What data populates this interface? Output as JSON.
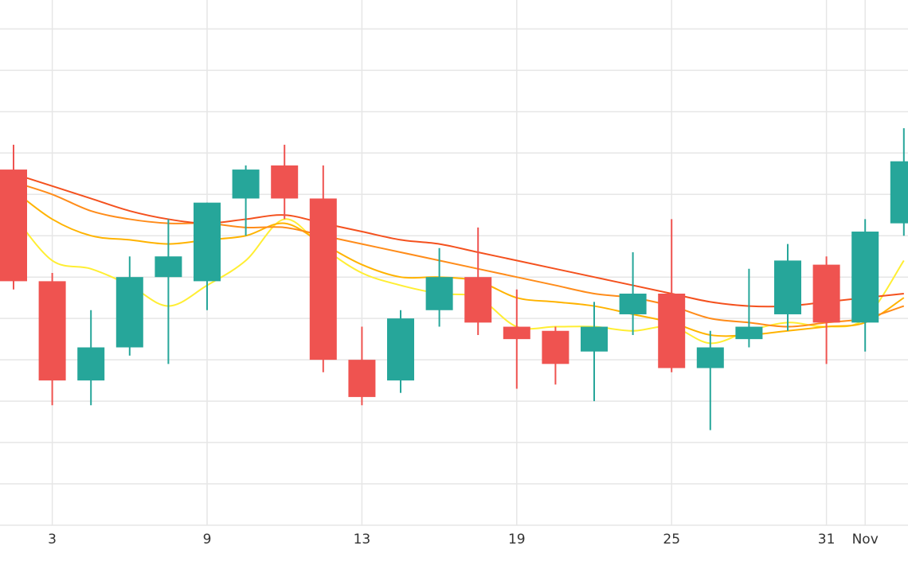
{
  "chart_data": {
    "type": "candlestick",
    "title": "",
    "xlabel": "",
    "ylabel": "",
    "grid": true,
    "legend": "none",
    "x_tick_labels": [
      "3",
      "9",
      "13",
      "19",
      "25",
      "31",
      "Nov"
    ],
    "ylim": [
      0,
      12.7
    ],
    "colors": {
      "up": "#26a69a",
      "down": "#ef5350",
      "grid": "#e6e6e6",
      "ma_series": [
        "#ffee33",
        "#ffb300",
        "#ff8c1a",
        "#f4511e"
      ]
    },
    "candles": [
      {
        "open": 8.6,
        "high": 9.2,
        "low": 5.7,
        "close": 5.9
      },
      {
        "open": 5.9,
        "high": 6.1,
        "low": 2.9,
        "close": 3.5
      },
      {
        "open": 3.5,
        "high": 5.2,
        "low": 2.9,
        "close": 4.3
      },
      {
        "open": 4.3,
        "high": 6.5,
        "low": 4.1,
        "close": 6.0
      },
      {
        "open": 6.0,
        "high": 7.4,
        "low": 3.9,
        "close": 6.5
      },
      {
        "open": 5.9,
        "high": 7.8,
        "low": 5.2,
        "close": 7.8
      },
      {
        "open": 7.9,
        "high": 8.7,
        "low": 7.0,
        "close": 8.6
      },
      {
        "open": 8.7,
        "high": 9.2,
        "low": 7.4,
        "close": 7.9
      },
      {
        "open": 7.9,
        "high": 8.7,
        "low": 3.7,
        "close": 4.0
      },
      {
        "open": 4.0,
        "high": 4.8,
        "low": 2.9,
        "close": 3.1
      },
      {
        "open": 3.5,
        "high": 5.2,
        "low": 3.2,
        "close": 5.0
      },
      {
        "open": 5.2,
        "high": 6.7,
        "low": 4.8,
        "close": 6.0
      },
      {
        "open": 6.0,
        "high": 7.2,
        "low": 4.6,
        "close": 4.9
      },
      {
        "open": 4.8,
        "high": 5.7,
        "low": 3.3,
        "close": 4.5
      },
      {
        "open": 4.7,
        "high": 4.8,
        "low": 3.4,
        "close": 3.9
      },
      {
        "open": 4.2,
        "high": 5.4,
        "low": 3.0,
        "close": 4.8
      },
      {
        "open": 5.1,
        "high": 6.6,
        "low": 4.6,
        "close": 5.6
      },
      {
        "open": 5.6,
        "high": 7.4,
        "low": 3.7,
        "close": 3.8
      },
      {
        "open": 3.8,
        "high": 4.7,
        "low": 2.3,
        "close": 4.3
      },
      {
        "open": 4.5,
        "high": 6.2,
        "low": 4.3,
        "close": 4.8
      },
      {
        "open": 5.1,
        "high": 6.8,
        "low": 4.7,
        "close": 6.4
      },
      {
        "open": 6.3,
        "high": 6.5,
        "low": 3.9,
        "close": 4.9
      },
      {
        "open": 4.9,
        "high": 7.4,
        "low": 4.2,
        "close": 7.1
      },
      {
        "open": 7.3,
        "high": 9.6,
        "low": 7.0,
        "close": 8.8
      }
    ],
    "ma_series": [
      {
        "values": [
          7.5,
          6.4,
          6.2,
          5.8,
          5.3,
          5.8,
          6.4,
          7.4,
          6.7,
          6.1,
          5.8,
          5.6,
          5.5,
          4.8,
          4.8,
          4.8,
          4.7,
          4.8,
          4.4,
          4.7,
          4.9,
          4.8,
          5.0,
          6.4
        ]
      },
      {
        "values": [
          8.1,
          7.4,
          7.0,
          6.9,
          6.8,
          6.9,
          7.0,
          7.3,
          6.8,
          6.3,
          6.0,
          6.0,
          5.9,
          5.5,
          5.4,
          5.3,
          5.1,
          4.9,
          4.6,
          4.6,
          4.7,
          4.8,
          4.9,
          5.5
        ]
      },
      {
        "values": [
          8.3,
          8.0,
          7.6,
          7.4,
          7.3,
          7.3,
          7.2,
          7.2,
          7.0,
          6.8,
          6.6,
          6.4,
          6.2,
          6.0,
          5.8,
          5.6,
          5.5,
          5.3,
          5.0,
          4.9,
          4.8,
          4.9,
          5.0,
          5.3
        ]
      },
      {
        "values": [
          8.5,
          8.2,
          7.9,
          7.6,
          7.4,
          7.3,
          7.4,
          7.5,
          7.3,
          7.1,
          6.9,
          6.8,
          6.6,
          6.4,
          6.2,
          6.0,
          5.8,
          5.6,
          5.4,
          5.3,
          5.3,
          5.4,
          5.5,
          5.6
        ]
      }
    ]
  }
}
